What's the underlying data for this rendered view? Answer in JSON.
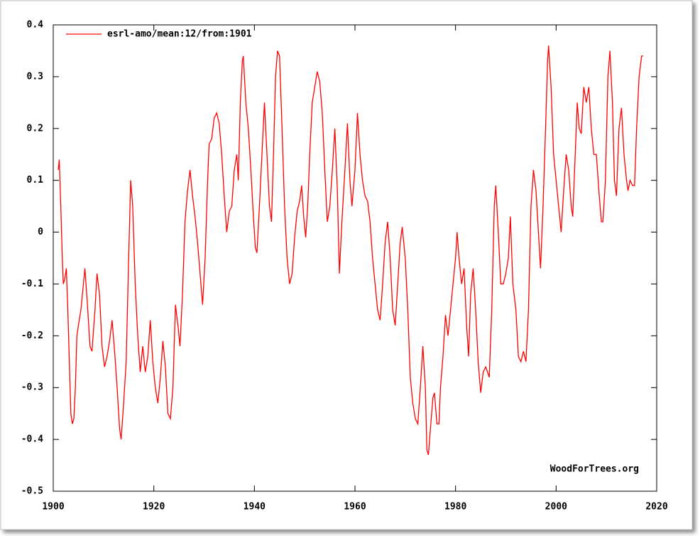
{
  "chart_data": {
    "type": "line",
    "annotation": "WoodForTrees.org",
    "legend": "upper left",
    "xlim": [
      1900,
      2020
    ],
    "xticks": [
      1900,
      1920,
      1940,
      1960,
      1980,
      2000,
      2020
    ],
    "ylim": [
      -0.5,
      0.4
    ],
    "yticks": [
      0.4,
      0.3,
      0.2,
      0.1,
      0,
      -0.1,
      -0.2,
      -0.3,
      -0.4,
      -0.5
    ],
    "x": [
      1901.0,
      1901.2,
      1901.5,
      1901.8,
      1902.0,
      1902.3,
      1902.6,
      1902.9,
      1903.2,
      1903.5,
      1903.8,
      1904.1,
      1904.4,
      1904.7,
      1905.0,
      1905.5,
      1906.3,
      1906.8,
      1907.3,
      1907.7,
      1908.3,
      1908.7,
      1909.2,
      1909.7,
      1910.2,
      1910.7,
      1911.2,
      1911.7,
      1912.2,
      1912.7,
      1913.2,
      1913.5,
      1914.0,
      1914.5,
      1915.0,
      1915.4,
      1915.8,
      1916.3,
      1916.8,
      1917.3,
      1917.8,
      1918.3,
      1918.8,
      1919.3,
      1919.8,
      1920.3,
      1920.8,
      1921.3,
      1921.8,
      1922.3,
      1922.8,
      1923.3,
      1923.8,
      1924.3,
      1924.8,
      1925.2,
      1925.7,
      1926.2,
      1926.7,
      1927.2,
      1927.7,
      1928.2,
      1928.7,
      1929.2,
      1929.7,
      1930.2,
      1930.7,
      1931.0,
      1931.5,
      1932.0,
      1932.5,
      1933.0,
      1933.5,
      1934.0,
      1934.5,
      1935.0,
      1935.5,
      1936.0,
      1936.5,
      1936.8,
      1937.2,
      1937.6,
      1937.8,
      1938.3,
      1938.8,
      1939.3,
      1939.8,
      1940.2,
      1940.5,
      1941.0,
      1941.5,
      1942.0,
      1942.5,
      1943.0,
      1943.4,
      1943.8,
      1944.2,
      1944.6,
      1945.0,
      1945.5,
      1946.0,
      1946.5,
      1947.0,
      1947.5,
      1948.0,
      1948.5,
      1949.0,
      1949.4,
      1949.8,
      1950.2,
      1950.6,
      1951.0,
      1951.5,
      1952.0,
      1952.5,
      1953.0,
      1953.5,
      1954.0,
      1954.5,
      1955.0,
      1955.5,
      1956.0,
      1956.5,
      1956.9,
      1957.4,
      1958.0,
      1958.5,
      1959.0,
      1959.4,
      1960.0,
      1960.5,
      1961.0,
      1961.5,
      1962.0,
      1962.5,
      1963.0,
      1963.5,
      1964.0,
      1964.5,
      1965.0,
      1965.5,
      1966.0,
      1966.5,
      1967.0,
      1967.5,
      1968.0,
      1968.5,
      1969.0,
      1969.4,
      1970.0,
      1970.5,
      1971.0,
      1971.5,
      1972.0,
      1972.5,
      1973.0,
      1973.5,
      1974.0,
      1974.3,
      1974.6,
      1975.0,
      1975.5,
      1975.8,
      1976.3,
      1976.7,
      1977.0,
      1977.5,
      1978.0,
      1978.5,
      1979.0,
      1979.5,
      1980.0,
      1980.3,
      1980.7,
      1981.2,
      1981.7,
      1982.2,
      1982.6,
      1983.0,
      1983.5,
      1984.0,
      1984.5,
      1985.0,
      1985.5,
      1986.0,
      1986.7,
      1987.2,
      1987.7,
      1988.0,
      1988.5,
      1989.0,
      1989.5,
      1990.0,
      1990.5,
      1990.9,
      1991.4,
      1992.0,
      1992.5,
      1993.0,
      1993.5,
      1994.0,
      1994.5,
      1995.0,
      1995.5,
      1996.0,
      1996.9,
      1997.4,
      1997.9,
      1998.3,
      1998.5,
      1999.0,
      1999.5,
      2000.0,
      2000.5,
      2001.0,
      2001.5,
      2002.0,
      2002.5,
      2003.0,
      2003.3,
      2003.8,
      2004.2,
      2004.6,
      2005.0,
      2005.5,
      2006.0,
      2006.5,
      2007.0,
      2007.5,
      2008.0,
      2008.5,
      2009.0,
      2009.3,
      2009.8,
      2010.3,
      2010.7,
      2011.2,
      2011.6,
      2012.0,
      2012.5,
      2013.0,
      2013.5,
      2014.0,
      2014.3,
      2014.7,
      2015.2,
      2015.6,
      2016.0,
      2016.5,
      2017.0,
      2017.3
    ],
    "series": [
      {
        "name": "esrl-amo/mean:12/from:1901",
        "color": "#ff0000",
        "values": [
          0.12,
          0.14,
          0.05,
          -0.05,
          -0.1,
          -0.09,
          -0.07,
          -0.15,
          -0.25,
          -0.35,
          -0.37,
          -0.36,
          -0.3,
          -0.2,
          -0.18,
          -0.15,
          -0.07,
          -0.14,
          -0.22,
          -0.23,
          -0.15,
          -0.08,
          -0.12,
          -0.22,
          -0.26,
          -0.24,
          -0.21,
          -0.17,
          -0.23,
          -0.3,
          -0.38,
          -0.4,
          -0.33,
          -0.25,
          -0.05,
          0.1,
          0.05,
          -0.1,
          -0.2,
          -0.27,
          -0.22,
          -0.27,
          -0.24,
          -0.17,
          -0.25,
          -0.3,
          -0.33,
          -0.28,
          -0.21,
          -0.26,
          -0.35,
          -0.36,
          -0.3,
          -0.14,
          -0.18,
          -0.22,
          -0.12,
          0.02,
          0.08,
          0.12,
          0.07,
          0.03,
          -0.02,
          -0.08,
          -0.14,
          -0.05,
          0.1,
          0.17,
          0.18,
          0.22,
          0.23,
          0.21,
          0.15,
          0.07,
          0.0,
          0.04,
          0.05,
          0.12,
          0.15,
          0.1,
          0.25,
          0.33,
          0.34,
          0.25,
          0.2,
          0.12,
          0.03,
          -0.03,
          -0.04,
          0.05,
          0.15,
          0.25,
          0.15,
          0.05,
          0.02,
          0.15,
          0.3,
          0.35,
          0.34,
          0.2,
          0.05,
          -0.05,
          -0.1,
          -0.08,
          -0.01,
          0.04,
          0.06,
          0.09,
          0.03,
          -0.01,
          0.05,
          0.15,
          0.25,
          0.28,
          0.31,
          0.29,
          0.23,
          0.12,
          0.02,
          0.05,
          0.12,
          0.2,
          0.08,
          -0.08,
          0.02,
          0.12,
          0.21,
          0.1,
          0.05,
          0.12,
          0.23,
          0.15,
          0.1,
          0.07,
          0.06,
          0.02,
          -0.05,
          -0.1,
          -0.15,
          -0.17,
          -0.1,
          -0.02,
          0.02,
          -0.05,
          -0.15,
          -0.18,
          -0.1,
          -0.02,
          0.01,
          -0.05,
          -0.15,
          -0.28,
          -0.33,
          -0.36,
          -0.37,
          -0.3,
          -0.22,
          -0.3,
          -0.42,
          -0.43,
          -0.38,
          -0.32,
          -0.31,
          -0.37,
          -0.37,
          -0.3,
          -0.24,
          -0.16,
          -0.2,
          -0.15,
          -0.1,
          -0.05,
          0.0,
          -0.05,
          -0.1,
          -0.07,
          -0.18,
          -0.24,
          -0.12,
          -0.07,
          -0.15,
          -0.25,
          -0.31,
          -0.27,
          -0.26,
          -0.28,
          -0.15,
          0.05,
          0.09,
          0.0,
          -0.1,
          -0.1,
          -0.08,
          -0.05,
          0.03,
          -0.1,
          -0.15,
          -0.24,
          -0.25,
          -0.23,
          -0.25,
          -0.15,
          0.05,
          0.12,
          0.08,
          -0.07,
          0.05,
          0.2,
          0.33,
          0.36,
          0.28,
          0.15,
          0.1,
          0.05,
          0.0,
          0.08,
          0.15,
          0.12,
          0.05,
          0.03,
          0.15,
          0.25,
          0.2,
          0.19,
          0.28,
          0.25,
          0.28,
          0.2,
          0.15,
          0.15,
          0.08,
          0.02,
          0.02,
          0.1,
          0.3,
          0.35,
          0.25,
          0.1,
          0.07,
          0.2,
          0.24,
          0.15,
          0.1,
          0.08,
          0.1,
          0.09,
          0.09,
          0.2,
          0.3,
          0.34,
          0.34
        ]
      }
    ]
  }
}
